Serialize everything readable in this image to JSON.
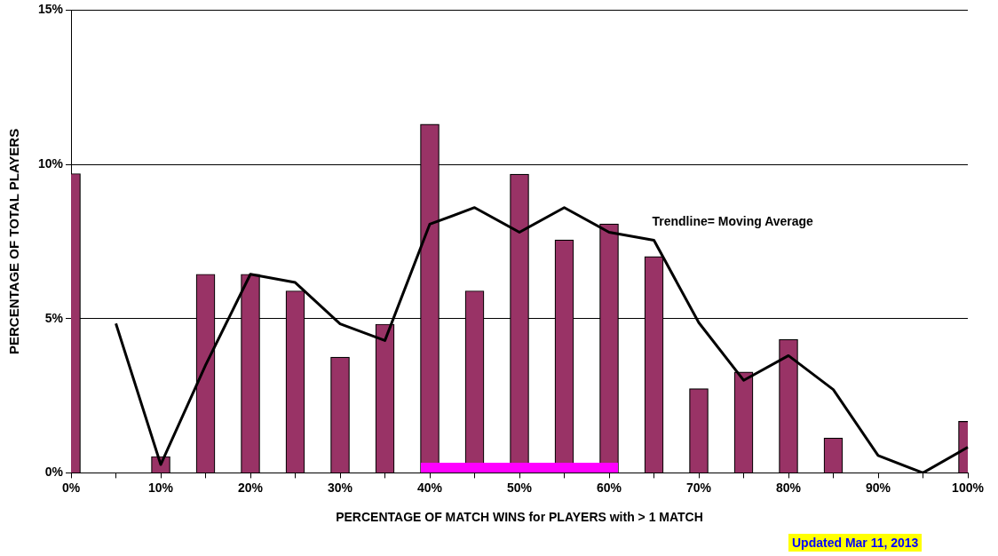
{
  "chart_data": {
    "type": "bar",
    "xlabel": "PERCENTAGE OF MATCH WINS for PLAYERS with > 1 MATCH",
    "ylabel": "PERCENTAGE OF TOTAL PLAYERS",
    "categories": [
      "0%",
      null,
      "10%",
      null,
      "20%",
      null,
      "30%",
      null,
      "40%",
      null,
      "50%",
      null,
      "60%",
      null,
      "70%",
      null,
      "80%",
      null,
      "90%",
      null,
      "100%"
    ],
    "series": [
      {
        "color": "#993366",
        "values": [
          9.7,
          null,
          0.53,
          6.44,
          6.44,
          5.9,
          3.75,
          4.82,
          11.3,
          5.9,
          9.68,
          7.55,
          8.07,
          7.01,
          2.73,
          3.27,
          4.33,
          1.13,
          null,
          null,
          1.67
        ]
      },
      {
        "type": "line",
        "name": "Trendline= Moving Average",
        "color": "#000000",
        "values": [
          null,
          4.84,
          0.27,
          3.49,
          6.44,
          6.17,
          4.83,
          4.29,
          8.06,
          8.6,
          7.8,
          8.6,
          7.8,
          7.54,
          4.87,
          3.0,
          3.8,
          2.7,
          0.56,
          0,
          0.83
        ]
      }
    ],
    "ylim": [
      0,
      15
    ],
    "yticks": [
      {
        "value": 0,
        "label": "0%"
      },
      {
        "value": 5,
        "label": "5%"
      },
      {
        "value": 10,
        "label": "10%"
      },
      {
        "value": 15,
        "label": "15%"
      }
    ],
    "grid": "y",
    "legend": false,
    "marker": "none",
    "annotations": [
      "Updated Mar 11, 2013"
    ]
  }
}
